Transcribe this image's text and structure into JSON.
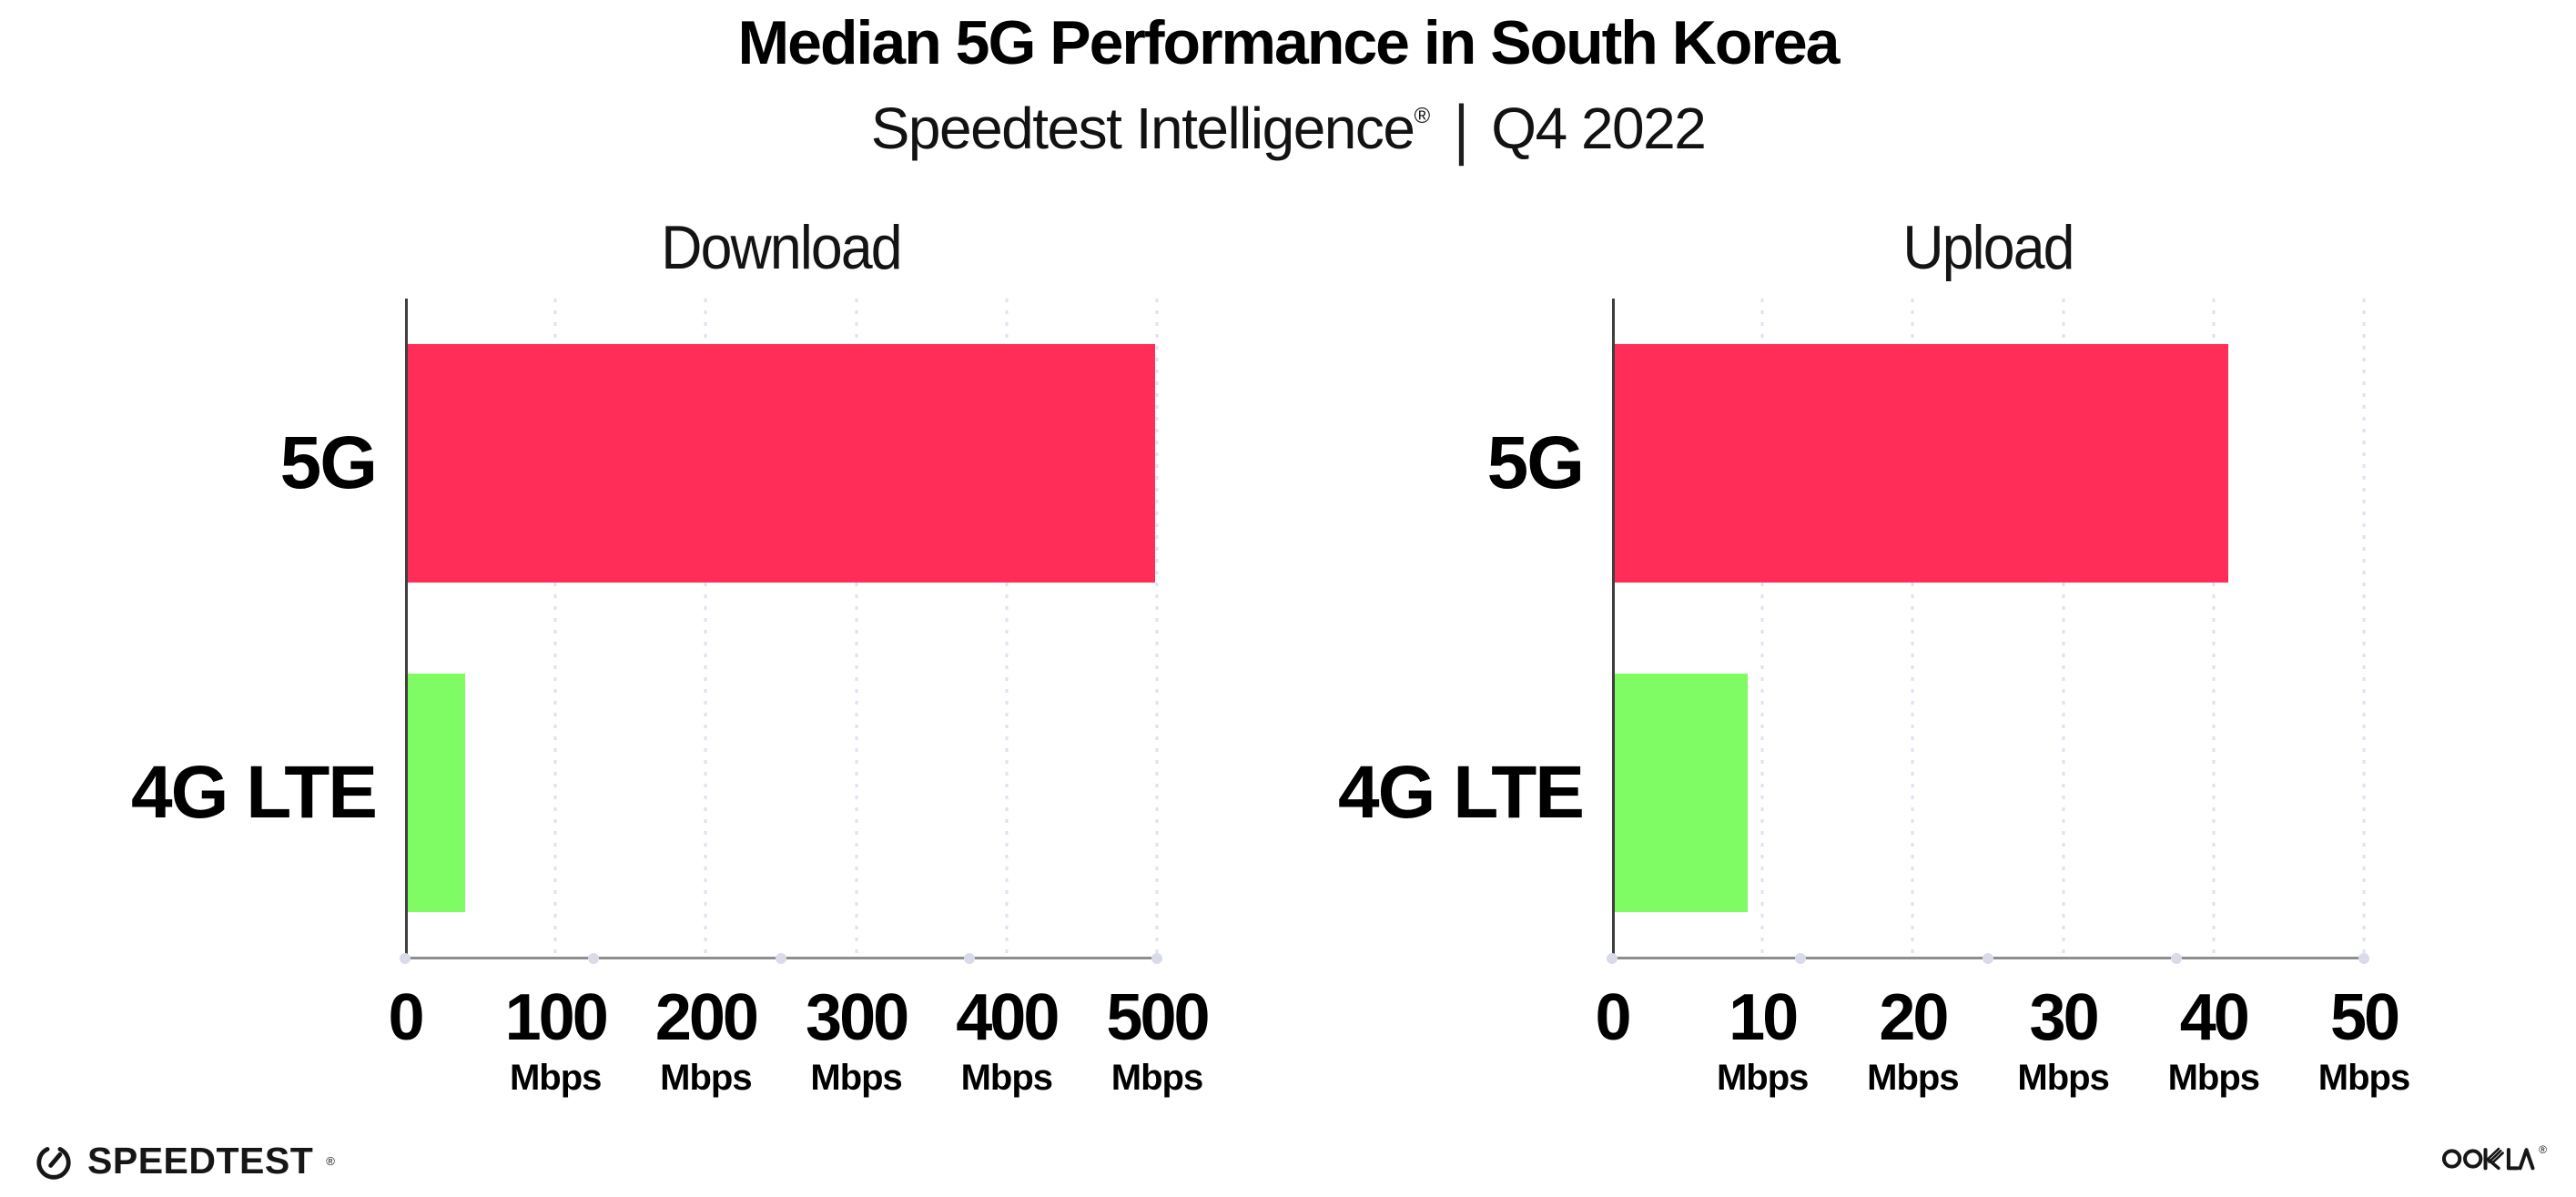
{
  "header": {
    "title": "Median 5G Performance in South Korea",
    "subtitle": {
      "brand": "Speedtest Intelligence",
      "registered_mark": "®",
      "separator": "|",
      "period": "Q4 2022"
    }
  },
  "chart_data": [
    {
      "type": "bar",
      "orientation": "horizontal",
      "title": "Download",
      "categories": [
        "5G",
        "4G LTE"
      ],
      "values": [
        499,
        40
      ],
      "unit": "Mbps",
      "xlim": [
        0,
        500
      ],
      "xticks": [
        0,
        100,
        200,
        300,
        400,
        500
      ],
      "xtick_unit_labels": [
        "",
        "Mbps",
        "Mbps",
        "Mbps",
        "Mbps",
        "Mbps"
      ],
      "bar_colors": [
        "#ff2d58",
        "#7ffb63"
      ],
      "grid": "dotted vertical gridlines at major ticks",
      "legend_position": "none"
    },
    {
      "type": "bar",
      "orientation": "horizontal",
      "title": "Upload",
      "categories": [
        "5G",
        "4G LTE"
      ],
      "values": [
        41,
        9
      ],
      "unit": "Mbps",
      "xlim": [
        0,
        50
      ],
      "xticks": [
        0,
        10,
        20,
        30,
        40,
        50
      ],
      "xtick_unit_labels": [
        "",
        "Mbps",
        "Mbps",
        "Mbps",
        "Mbps",
        "Mbps"
      ],
      "bar_colors": [
        "#ff2d58",
        "#7ffb63"
      ],
      "grid": "dotted vertical gridlines at major ticks",
      "legend_position": "none"
    }
  ],
  "footer": {
    "speedtest_wordmark": "SPEEDTEST",
    "speedtest_mark": "®",
    "ookla_wordmark": "OOKLA",
    "ookla_mark": "®"
  },
  "colors": {
    "bar_5g": "#ff2d58",
    "bar_4g_lte": "#7ffb63",
    "background": "#ffffff",
    "text": "#000000",
    "gridline": "#dfe1ef",
    "x_axis_line": "#8e8e8e",
    "y_axis_line": "#3f3f3f"
  }
}
